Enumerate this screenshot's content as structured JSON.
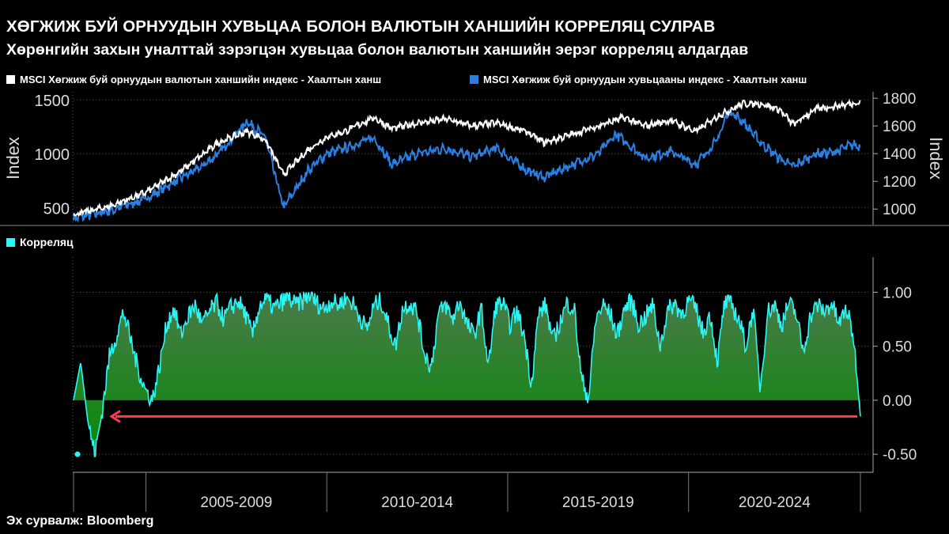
{
  "title": "ХӨГЖИЖ БУЙ ОРНУУДЫН ХУВЬЦАА БОЛОН ВАЛЮТЫН ХАНШИЙН КОРРЕЛЯЦ СУЛРАВ",
  "subtitle": "Хөрөнгийн захын уналттай зэрэгцэн хувьцаа болон валютын ханшийн эерэг корреляц алдагдав",
  "source": "Эх сурвалж: Bloomberg",
  "colors": {
    "currency": "#ffffff",
    "equity": "#2b7fe0",
    "correlation": "#2ef5f5",
    "fill_top": "#4a8a4a",
    "fill_bottom": "#0a8a0a",
    "arrow": "#ff3b4d"
  },
  "chart_data": [
    {
      "type": "line",
      "legend_placement": "top-left",
      "grid": true,
      "ylabel_left": "Index",
      "ylabel_right": "Index",
      "yticks_left": [
        "500",
        "1000",
        "1500"
      ],
      "yticks_right": [
        "1000",
        "1200",
        "1400",
        "1600",
        "1800"
      ],
      "ylim_left": [
        370,
        1560
      ],
      "ylim_right": [
        910,
        1835
      ],
      "x_start": 2003.0,
      "x_end": 2024.75,
      "series": [
        {
          "name": "MSCI Хөгжиж буй орнуудын валютын ханшийн индекс - Хаалтын ханш",
          "axis": "right",
          "x": [
            2003.0,
            2004.0,
            2005.0,
            2006.0,
            2007.0,
            2007.8,
            2008.3,
            2008.8,
            2009.5,
            2010.0,
            2010.5,
            2011.3,
            2011.8,
            2012.5,
            2013.3,
            2014.0,
            2014.7,
            2015.5,
            2016.0,
            2016.8,
            2017.5,
            2018.2,
            2018.8,
            2019.5,
            2020.2,
            2020.8,
            2021.5,
            2022.0,
            2022.5,
            2022.9,
            2023.5,
            2024.0,
            2024.5,
            2024.7
          ],
          "values": [
            960,
            1020,
            1120,
            1280,
            1480,
            1560,
            1500,
            1250,
            1430,
            1520,
            1560,
            1660,
            1580,
            1620,
            1650,
            1600,
            1620,
            1560,
            1480,
            1540,
            1600,
            1660,
            1600,
            1640,
            1560,
            1670,
            1760,
            1760,
            1720,
            1610,
            1720,
            1740,
            1760,
            1770
          ]
        },
        {
          "name": "MSCI Хөгжиж буй орнуудын хувьцааны индекс - Хаалтын ханш",
          "axis": "left",
          "x": [
            2003.0,
            2004.0,
            2005.0,
            2006.0,
            2006.5,
            2007.0,
            2007.8,
            2008.3,
            2008.8,
            2009.5,
            2010.0,
            2010.5,
            2011.3,
            2011.8,
            2012.5,
            2013.3,
            2014.0,
            2014.7,
            2015.5,
            2016.0,
            2016.8,
            2017.5,
            2018.0,
            2018.8,
            2019.5,
            2020.2,
            2020.8,
            2021.1,
            2021.5,
            2022.0,
            2022.5,
            2022.9,
            2023.5,
            2024.0,
            2024.5,
            2024.7
          ],
          "values": [
            400,
            470,
            580,
            780,
            870,
            1000,
            1300,
            1150,
            500,
            850,
            1000,
            1050,
            1150,
            900,
            1000,
            1050,
            970,
            1050,
            850,
            780,
            900,
            1000,
            1180,
            960,
            1020,
            900,
            1130,
            1400,
            1300,
            1100,
            960,
            880,
            1000,
            1010,
            1080,
            1070
          ]
        }
      ]
    },
    {
      "type": "area",
      "legend_placement": "top-left",
      "grid": true,
      "series_name": "Корреляц",
      "yticks": [
        "1.00",
        "0.50",
        "0.00",
        "-0.50"
      ],
      "ylim": [
        -0.55,
        1.12
      ],
      "x_start": 2003.0,
      "x_end": 2024.75,
      "xlabels": [
        "2005-2009",
        "2010-2014",
        "2015-2019",
        "2020-2024"
      ],
      "values": [
        0.0,
        0.35,
        -0.2,
        -0.5,
        -0.1,
        0.4,
        0.6,
        0.82,
        0.55,
        0.3,
        0.1,
        0.0,
        0.3,
        0.7,
        0.85,
        0.6,
        0.78,
        0.88,
        0.7,
        0.82,
        0.9,
        0.75,
        0.86,
        0.92,
        0.8,
        0.6,
        0.88,
        0.93,
        0.85,
        0.9,
        0.95,
        0.88,
        0.92,
        0.98,
        0.9,
        0.85,
        0.92,
        0.88,
        0.95,
        0.9,
        0.78,
        0.65,
        0.88,
        0.92,
        0.7,
        0.5,
        0.85,
        0.9,
        0.82,
        0.45,
        0.3,
        0.8,
        0.88,
        0.75,
        0.92,
        0.7,
        0.6,
        0.85,
        0.3,
        0.88,
        0.9,
        0.7,
        0.82,
        0.6,
        0.15,
        0.8,
        0.88,
        0.55,
        0.72,
        0.9,
        0.85,
        0.2,
        0.02,
        0.75,
        0.88,
        0.8,
        0.6,
        0.85,
        0.92,
        0.7,
        0.78,
        0.88,
        0.5,
        0.82,
        0.9,
        0.8,
        0.92,
        0.85,
        0.62,
        0.8,
        0.35,
        0.9,
        0.88,
        0.75,
        0.5,
        0.85,
        0.1,
        0.82,
        0.88,
        0.7,
        0.9,
        0.8,
        0.45,
        0.78,
        0.88,
        0.82,
        0.9,
        0.7,
        0.85,
        0.6,
        -0.15
      ],
      "annotation": "arrow pointing left at the latest reading, the lowest since the start of the series"
    }
  ]
}
